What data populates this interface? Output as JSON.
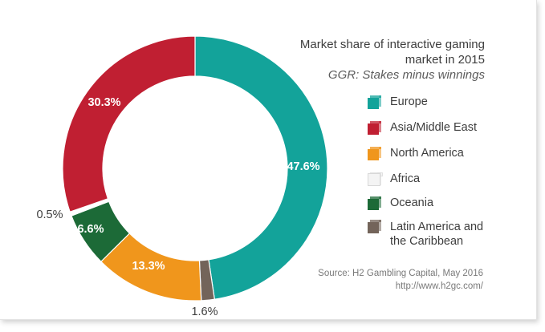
{
  "chart_data": {
    "type": "pie",
    "title": "Market share of interactive gaming market in 2015",
    "subtitle": "GGR: Stakes minus winnings",
    "unit": "%",
    "slices": [
      {
        "label": "Europe",
        "value": 47.6,
        "display": "47.6%",
        "color": "#13a39a"
      },
      {
        "label": "Latin America and the Caribbean",
        "value": 1.6,
        "display": "1.6%",
        "color": "#73645a"
      },
      {
        "label": "North America",
        "value": 13.3,
        "display": "13.3%",
        "color": "#f0961c"
      },
      {
        "label": "Oceania",
        "value": 6.6,
        "display": "6.6%",
        "color": "#1c6a37"
      },
      {
        "label": "Africa",
        "value": 0.5,
        "display": "0.5%",
        "color": "#ffffff"
      },
      {
        "label": "Asia/Middle East",
        "value": 30.3,
        "display": "30.3%",
        "color": "#c01f32"
      }
    ],
    "legend": [
      {
        "label": "Europe",
        "color": "#13a39a"
      },
      {
        "label": "Asia/Middle East",
        "color": "#c01f32"
      },
      {
        "label": "North America",
        "color": "#f0961c"
      },
      {
        "label": "Africa",
        "color": "#f4f4f4"
      },
      {
        "label": "Oceania",
        "color": "#1c6a37"
      },
      {
        "label": "Latin America and",
        "label_line2": "the Caribbean",
        "color": "#73645a"
      }
    ],
    "legend_position": "right",
    "source": "Source: H2 Gambling Capital, May 2016",
    "source_url": "http://www.h2gc.com/"
  }
}
